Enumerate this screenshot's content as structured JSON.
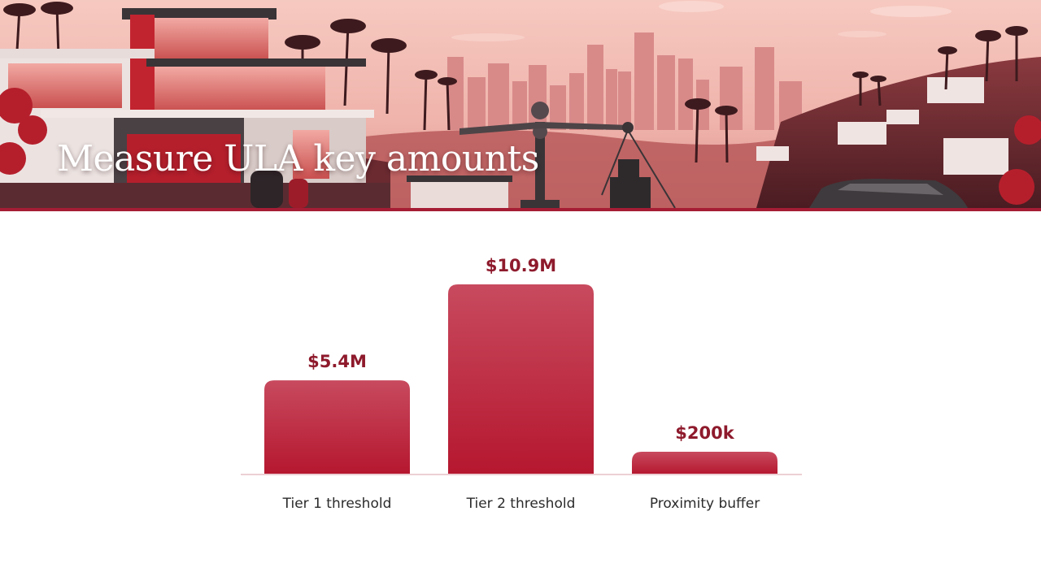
{
  "slide": {
    "title": "Measure ULA key amounts"
  },
  "colors": {
    "accent": "#a51d34",
    "bar_top": "#c84a5e",
    "bar_bottom": "#b5172f",
    "value_label": "#8e1a2c",
    "baseline": "#ecd0d4"
  },
  "hero": {
    "icons": [
      "palm-tree-icon",
      "modern-house-icon",
      "city-skyline-icon",
      "balance-scale-icon",
      "car-icon"
    ]
  },
  "chart_data": {
    "type": "bar",
    "categories": [
      "Tier 1 threshold",
      "Tier 2 threshold",
      "Proximity buffer"
    ],
    "values": [
      5400000,
      10900000,
      200000
    ],
    "value_labels": [
      "$5.4M",
      "$10.9M",
      "$200k"
    ],
    "title": "",
    "xlabel": "",
    "ylabel": "",
    "ylim": [
      0,
      10900000
    ],
    "grid": false,
    "legend": "none"
  }
}
